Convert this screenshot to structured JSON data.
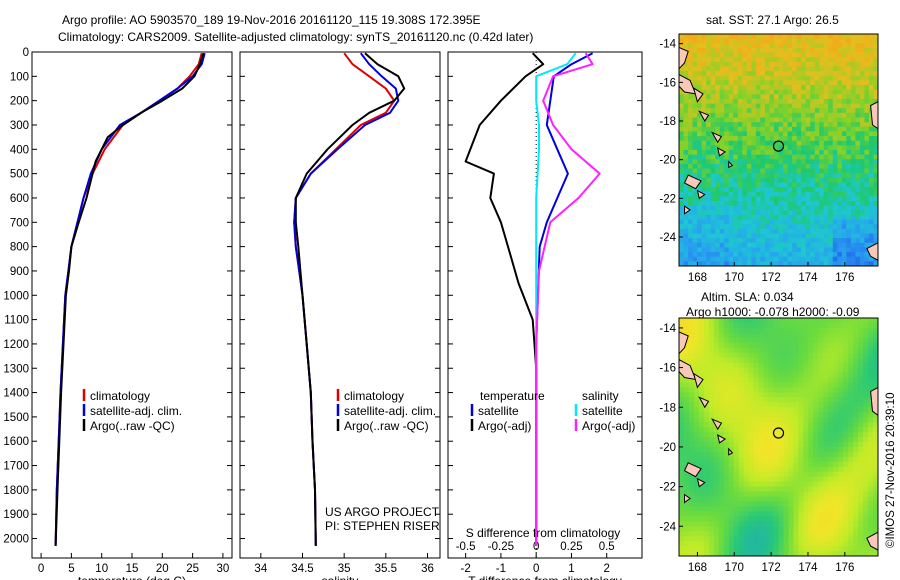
{
  "header": {
    "title_line1": "Argo profile: AO 5903570_189 19-Nov-2016 20161120_115 19.308S 172.395E",
    "title_line2": "Climatology: CARS2009. Satellite-adjusted climatology: synTS_20161120.nc (0.42d later)"
  },
  "colors": {
    "climatology": "#e00000",
    "satellite": "#0000e0",
    "argo": "#000000",
    "salinity_satellite": "#00e8ff",
    "salinity_argo": "#ff20ff"
  },
  "credits": {
    "project": "US ARGO PROJECT",
    "pi": "PI: STEPHEN RISER",
    "imos": "©IMOS 27-Nov-2016 20:39:10"
  },
  "chart_data": [
    {
      "type": "line",
      "id": "temperature",
      "xlabel": "temperature (deg C)",
      "xlim": [
        -1.5,
        31.5
      ],
      "xticks": [
        0,
        5,
        10,
        15,
        20,
        25,
        30
      ],
      "ylim": [
        2080,
        0
      ],
      "yticks": [
        0,
        100,
        200,
        300,
        400,
        500,
        600,
        700,
        800,
        900,
        1000,
        1100,
        1200,
        1300,
        1400,
        1500,
        1600,
        1700,
        1800,
        1900,
        2000
      ],
      "legend": [
        "climatology",
        "satellite-adj. clim.",
        "Argo(..raw -QC)"
      ],
      "series": [
        {
          "name": "climatology",
          "color": "#e00000",
          "x": [
            26.5,
            26.0,
            24.5,
            22.5,
            19.5,
            16.5,
            13.5,
            10.5,
            8.5,
            7.0,
            6.0,
            5.0,
            4.5,
            4.0,
            3.6,
            3.2,
            2.9,
            2.6,
            2.4
          ],
          "y": [
            5,
            50,
            100,
            150,
            200,
            250,
            300,
            400,
            500,
            600,
            700,
            800,
            900,
            1000,
            1200,
            1400,
            1600,
            1800,
            2030
          ]
        },
        {
          "name": "satellite-adj. clim.",
          "color": "#0000e0",
          "x": [
            27.0,
            26.5,
            25.0,
            22.5,
            19.5,
            16.5,
            13.0,
            10.0,
            8.2,
            7.0,
            6.0,
            5.0,
            4.5,
            4.0,
            3.6,
            3.2,
            2.9,
            2.6,
            2.4
          ],
          "y": [
            5,
            50,
            100,
            150,
            200,
            250,
            300,
            400,
            500,
            600,
            700,
            800,
            900,
            1000,
            1200,
            1400,
            1600,
            1800,
            2030
          ]
        },
        {
          "name": "Argo(..raw -QC)",
          "color": "#000000",
          "x": [
            26.8,
            26.2,
            25.3,
            23.3,
            20.0,
            16.5,
            13.5,
            11.0,
            9.0,
            7.5,
            6.2,
            5.0,
            4.6,
            4.1,
            3.7,
            3.3,
            3.0,
            2.7,
            2.4
          ],
          "y": [
            5,
            50,
            100,
            150,
            200,
            250,
            300,
            350,
            450,
            600,
            700,
            800,
            900,
            1000,
            1200,
            1400,
            1600,
            1800,
            2030
          ]
        }
      ]
    },
    {
      "type": "line",
      "id": "salinity",
      "xlabel": "salinity",
      "xlim": [
        33.75,
        36.15
      ],
      "xticks": [
        34,
        34.5,
        35,
        35.5,
        36
      ],
      "ylim": [
        2080,
        0
      ],
      "legend": [
        "climatology",
        "satellite-adj. clim.",
        "Argo(..raw -QC)"
      ],
      "series": [
        {
          "name": "climatology",
          "color": "#e00000",
          "x": [
            35.0,
            35.1,
            35.3,
            35.5,
            35.6,
            35.5,
            35.2,
            34.9,
            34.6,
            34.42,
            34.4,
            34.42,
            34.46,
            34.5,
            34.55,
            34.6,
            34.62,
            34.65,
            34.66
          ],
          "y": [
            5,
            50,
            100,
            150,
            200,
            250,
            300,
            400,
            500,
            600,
            700,
            800,
            900,
            1000,
            1200,
            1400,
            1600,
            1800,
            2030
          ]
        },
        {
          "name": "satellite-adj. clim.",
          "color": "#0000e0",
          "x": [
            35.2,
            35.3,
            35.45,
            35.62,
            35.65,
            35.55,
            35.25,
            34.92,
            34.6,
            34.42,
            34.4,
            34.42,
            34.46,
            34.5,
            34.55,
            34.6,
            34.62,
            34.65,
            34.66
          ],
          "y": [
            5,
            50,
            100,
            150,
            200,
            250,
            300,
            400,
            500,
            600,
            700,
            800,
            900,
            1000,
            1200,
            1400,
            1600,
            1800,
            2030
          ]
        },
        {
          "name": "Argo(..raw -QC)",
          "color": "#000000",
          "x": [
            35.25,
            35.4,
            35.65,
            35.72,
            35.6,
            35.3,
            35.1,
            34.8,
            34.55,
            34.42,
            34.42,
            34.45,
            34.5,
            34.55,
            34.6,
            34.62,
            34.65,
            34.66
          ],
          "y": [
            5,
            50,
            100,
            150,
            200,
            250,
            300,
            400,
            500,
            600,
            700,
            800,
            1000,
            1200,
            1400,
            1600,
            1800,
            2030
          ]
        }
      ]
    },
    {
      "type": "line",
      "id": "difference",
      "xlabel": "T difference from climatology",
      "xlabel_top": "S difference from climatology",
      "xlim": [
        -2.5,
        3.0
      ],
      "xticks": [
        -2,
        -1,
        0,
        1,
        2
      ],
      "xticks_top": [
        -0.5,
        -0.25,
        0,
        0.25,
        0.5
      ],
      "ylim": [
        2080,
        0
      ],
      "legend_t": [
        "temperature",
        "satellite",
        "Argo(-adj)"
      ],
      "legend_s": [
        "salinity",
        "satellite",
        "Argo(-adj)"
      ],
      "series": [
        {
          "name": "temperature satellite",
          "color": "#0000e0",
          "x": [
            1.6,
            1.0,
            0.5,
            0.4,
            0.3,
            0.6,
            0.9,
            0.6,
            0.3,
            0.1,
            0.05,
            0,
            0,
            0,
            0,
            0
          ],
          "y": [
            5,
            50,
            100,
            200,
            300,
            400,
            500,
            600,
            700,
            800,
            1000,
            1200,
            1400,
            1600,
            1800,
            2030
          ]
        },
        {
          "name": "temperature Argo(-adj)",
          "color": "#000000",
          "x": [
            -0.1,
            0.2,
            -0.3,
            -1.0,
            -1.6,
            -2.0,
            -1.2,
            -1.3,
            -1.0,
            -0.8,
            -0.5,
            -0.1,
            0,
            0,
            0,
            0
          ],
          "y": [
            5,
            50,
            100,
            200,
            300,
            450,
            500,
            600,
            700,
            800,
            950,
            1100,
            1300,
            1600,
            1800,
            2030
          ]
        },
        {
          "name": "salinity satellite",
          "color": "#00e8ff",
          "x": [
            0.28,
            0.22,
            0.0,
            0.0,
            0.02,
            0.02,
            0.0,
            0.0,
            0.0,
            0.0,
            0.0,
            0.0,
            0.0
          ],
          "y": [
            5,
            50,
            100,
            200,
            300,
            400,
            600,
            800,
            1000,
            1200,
            1500,
            1800,
            2030
          ],
          "x_axis": "top"
        },
        {
          "name": "salinity Argo(-adj)",
          "color": "#ff20ff",
          "x": [
            0.35,
            0.4,
            0.12,
            0.05,
            0.12,
            0.25,
            0.45,
            0.3,
            0.1,
            0.02,
            0.0,
            0.0,
            0.0
          ],
          "y": [
            5,
            50,
            100,
            200,
            300,
            400,
            500,
            600,
            700,
            900,
            1200,
            1600,
            2030
          ],
          "x_axis": "top"
        }
      ]
    },
    {
      "type": "heatmap",
      "id": "sst_map",
      "title": "sat. SST: 27.1  Argo: 26.5",
      "xlim": [
        167,
        177.8
      ],
      "ylim": [
        -25.5,
        -13.5
      ],
      "xticks": [
        168,
        170,
        172,
        174,
        176
      ],
      "yticks": [
        -14,
        -16,
        -18,
        -20,
        -22,
        -24
      ],
      "marker": {
        "lon": 172.4,
        "lat": -19.3
      }
    },
    {
      "type": "heatmap",
      "id": "sla_map",
      "title_line1": "Altim. SLA: 0.034",
      "title_line2": "Argo h1000: -0.078  h2000: -0.09",
      "xlim": [
        167,
        177.8
      ],
      "ylim": [
        -25.5,
        -13.5
      ],
      "xticks": [
        168,
        170,
        172,
        174,
        176
      ],
      "yticks": [
        -14,
        -16,
        -18,
        -20,
        -22,
        -24
      ],
      "marker": {
        "lon": 172.4,
        "lat": -19.3
      }
    }
  ]
}
